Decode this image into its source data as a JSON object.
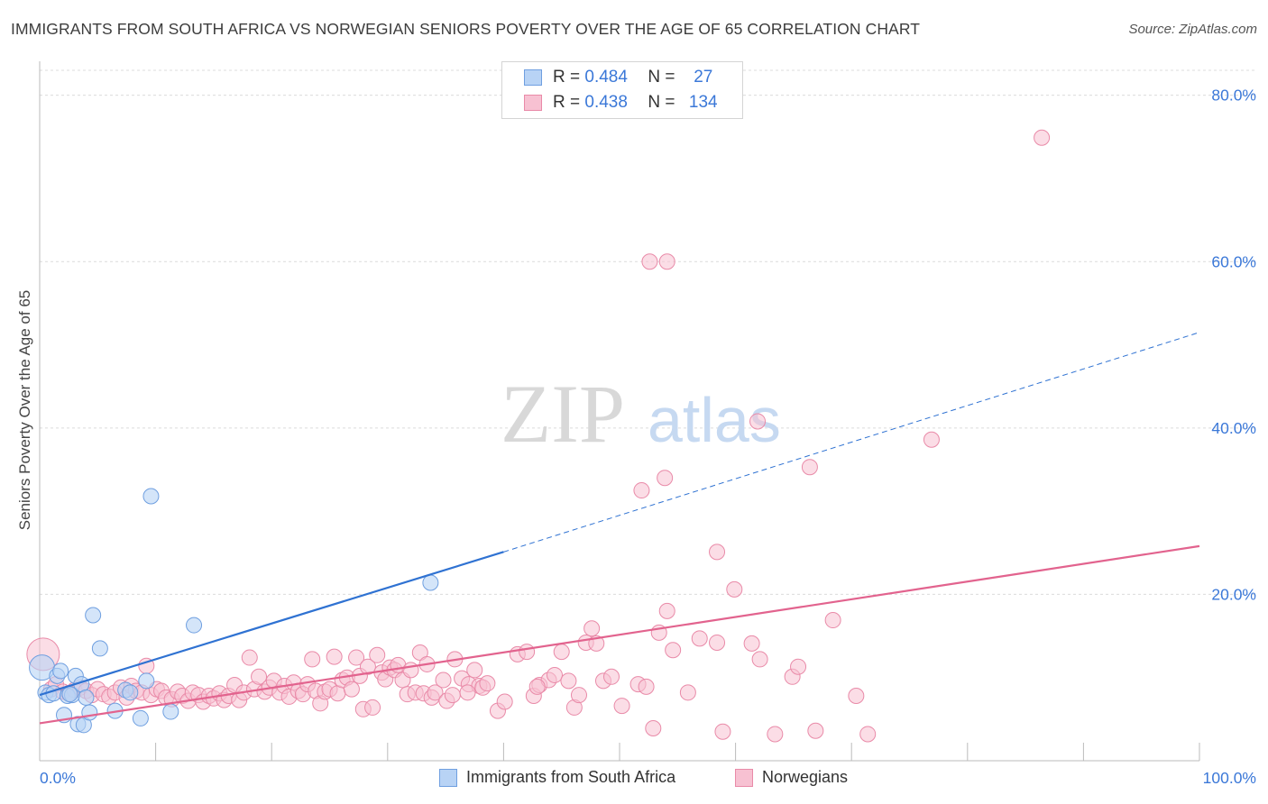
{
  "title": "IMMIGRANTS FROM SOUTH AFRICA VS NORWEGIAN SENIORS POVERTY OVER THE AGE OF 65 CORRELATION CHART",
  "source": "Source: ZipAtlas.com",
  "watermark": {
    "zip": "ZIP",
    "atlas": "atlas"
  },
  "colors": {
    "blue_fill": "#b8d3f5",
    "blue_stroke": "#6f9fe0",
    "blue_line": "#2f72d2",
    "pink_fill": "#f7c1d2",
    "pink_stroke": "#e98aa8",
    "pink_line": "#e2638e",
    "tick_text": "#3b78d8",
    "grid": "#dcdcdc"
  },
  "stats_legend": [
    {
      "r_label": "R =",
      "r_value": "0.484",
      "n_label": "N =",
      "n_value": "27"
    },
    {
      "r_label": "R =",
      "r_value": "0.438",
      "n_label": "N =",
      "n_value": "134"
    }
  ],
  "chart_data": {
    "type": "scatter",
    "title": "IMMIGRANTS FROM SOUTH AFRICA VS NORWEGIAN SENIORS POVERTY OVER THE AGE OF 65 CORRELATION CHART",
    "xlabel": "",
    "ylabel": "Seniors Poverty Over the Age of 65",
    "xlim": [
      0,
      100
    ],
    "ylim": [
      0,
      83
    ],
    "x_tick_labels": [
      "0.0%",
      "100.0%"
    ],
    "y_ticks": [
      20,
      40,
      60,
      80
    ],
    "y_tick_labels": [
      "20.0%",
      "40.0%",
      "60.0%",
      "80.0%"
    ],
    "grid": true,
    "legend_position": "bottom",
    "series": [
      {
        "name": "Immigrants from South Africa",
        "r": 0.484,
        "n": 27,
        "trend": {
          "x0": 0,
          "y0": 7.9,
          "x1": 40,
          "y1": 25.1,
          "dashed_to_x": 100,
          "dashed_to_y": 51.5
        },
        "points": [
          [
            0.2,
            11.2
          ],
          [
            0.5,
            8.2
          ],
          [
            0.8,
            7.9
          ],
          [
            1.2,
            8.1
          ],
          [
            1.5,
            10.2
          ],
          [
            1.8,
            10.8
          ],
          [
            2.1,
            5.5
          ],
          [
            2.4,
            7.8
          ],
          [
            2.8,
            7.9
          ],
          [
            3.1,
            10.2
          ],
          [
            3.3,
            4.4
          ],
          [
            3.6,
            9.2
          ],
          [
            3.8,
            4.3
          ],
          [
            4.0,
            7.6
          ],
          [
            4.3,
            5.8
          ],
          [
            4.6,
            17.5
          ],
          [
            5.2,
            13.5
          ],
          [
            6.5,
            6.0
          ],
          [
            7.4,
            8.5
          ],
          [
            7.8,
            8.2
          ],
          [
            8.7,
            5.1
          ],
          [
            9.2,
            9.6
          ],
          [
            9.6,
            31.8
          ],
          [
            11.3,
            5.9
          ],
          [
            13.3,
            16.3
          ],
          [
            33.7,
            21.4
          ],
          [
            2.6,
            8.0
          ]
        ]
      },
      {
        "name": "Norwegians",
        "r": 0.438,
        "n": 134,
        "trend": {
          "x0": 0,
          "y0": 4.5,
          "x1": 100,
          "y1": 25.8
        },
        "points": [
          [
            0.3,
            12.8
          ],
          [
            1.0,
            8.6
          ],
          [
            1.4,
            9.2
          ],
          [
            2.0,
            8.3
          ],
          [
            2.5,
            8.1
          ],
          [
            3.0,
            8.5
          ],
          [
            3.5,
            8.8
          ],
          [
            4.0,
            8.4
          ],
          [
            4.5,
            7.9
          ],
          [
            5.0,
            8.6
          ],
          [
            5.5,
            8.0
          ],
          [
            6.0,
            7.7
          ],
          [
            6.5,
            8.2
          ],
          [
            7.0,
            8.8
          ],
          [
            7.5,
            7.6
          ],
          [
            7.9,
            9.0
          ],
          [
            8.3,
            8.4
          ],
          [
            8.8,
            8.2
          ],
          [
            9.2,
            11.4
          ],
          [
            9.6,
            7.9
          ],
          [
            10.1,
            8.6
          ],
          [
            10.5,
            8.4
          ],
          [
            10.9,
            7.6
          ],
          [
            11.4,
            7.4
          ],
          [
            11.9,
            8.3
          ],
          [
            12.3,
            7.8
          ],
          [
            12.8,
            7.2
          ],
          [
            13.2,
            8.2
          ],
          [
            13.7,
            7.9
          ],
          [
            14.1,
            7.1
          ],
          [
            14.6,
            7.8
          ],
          [
            15.0,
            7.5
          ],
          [
            15.5,
            8.1
          ],
          [
            15.9,
            7.3
          ],
          [
            16.3,
            7.8
          ],
          [
            16.8,
            9.1
          ],
          [
            17.2,
            7.3
          ],
          [
            17.6,
            8.2
          ],
          [
            18.1,
            12.4
          ],
          [
            18.5,
            8.6
          ],
          [
            18.9,
            10.1
          ],
          [
            19.4,
            8.3
          ],
          [
            19.8,
            8.8
          ],
          [
            20.2,
            9.6
          ],
          [
            20.7,
            8.2
          ],
          [
            21.1,
            9.0
          ],
          [
            21.5,
            7.7
          ],
          [
            21.9,
            9.4
          ],
          [
            22.3,
            8.4
          ],
          [
            22.7,
            8.0
          ],
          [
            23.1,
            9.2
          ],
          [
            23.5,
            12.2
          ],
          [
            23.8,
            8.4
          ],
          [
            24.2,
            6.9
          ],
          [
            24.6,
            8.3
          ],
          [
            25.0,
            8.6
          ],
          [
            25.4,
            12.5
          ],
          [
            25.7,
            8.1
          ],
          [
            26.1,
            9.7
          ],
          [
            26.5,
            10.0
          ],
          [
            26.9,
            8.6
          ],
          [
            27.3,
            12.4
          ],
          [
            27.6,
            10.2
          ],
          [
            27.9,
            6.2
          ],
          [
            28.3,
            11.3
          ],
          [
            28.7,
            6.4
          ],
          [
            29.1,
            12.7
          ],
          [
            29.5,
            10.6
          ],
          [
            29.8,
            9.8
          ],
          [
            30.2,
            11.2
          ],
          [
            30.6,
            10.9
          ],
          [
            30.9,
            11.5
          ],
          [
            31.3,
            9.7
          ],
          [
            31.7,
            8.0
          ],
          [
            32.0,
            10.9
          ],
          [
            32.4,
            8.2
          ],
          [
            32.8,
            13.0
          ],
          [
            33.1,
            8.1
          ],
          [
            33.4,
            11.6
          ],
          [
            33.8,
            7.6
          ],
          [
            34.1,
            8.2
          ],
          [
            34.8,
            9.7
          ],
          [
            35.1,
            7.2
          ],
          [
            35.8,
            12.2
          ],
          [
            36.4,
            9.9
          ],
          [
            37.0,
            9.2
          ],
          [
            37.5,
            10.9
          ],
          [
            37.9,
            9.0
          ],
          [
            38.2,
            8.8
          ],
          [
            38.6,
            9.3
          ],
          [
            39.5,
            6.0
          ],
          [
            40.1,
            7.1
          ],
          [
            41.2,
            12.8
          ],
          [
            42.0,
            13.1
          ],
          [
            42.6,
            7.8
          ],
          [
            43.1,
            9.1
          ],
          [
            43.9,
            9.7
          ],
          [
            44.4,
            10.3
          ],
          [
            45.0,
            13.1
          ],
          [
            45.6,
            9.6
          ],
          [
            46.1,
            6.4
          ],
          [
            46.5,
            7.9
          ],
          [
            47.1,
            14.2
          ],
          [
            47.6,
            15.9
          ],
          [
            48.0,
            14.1
          ],
          [
            48.6,
            9.6
          ],
          [
            49.3,
            10.1
          ],
          [
            50.2,
            6.6
          ],
          [
            51.6,
            9.2
          ],
          [
            52.3,
            8.9
          ],
          [
            52.9,
            3.9
          ],
          [
            53.4,
            15.4
          ],
          [
            54.1,
            18.0
          ],
          [
            54.6,
            13.3
          ],
          [
            55.9,
            8.2
          ],
          [
            56.9,
            14.7
          ],
          [
            58.4,
            25.1
          ],
          [
            59.9,
            20.6
          ],
          [
            61.4,
            14.1
          ],
          [
            62.1,
            12.2
          ],
          [
            64.9,
            10.1
          ],
          [
            65.4,
            11.3
          ],
          [
            68.4,
            16.9
          ],
          [
            70.4,
            7.8
          ],
          [
            71.4,
            3.2
          ],
          [
            76.9,
            38.6
          ],
          [
            86.4,
            74.9
          ],
          [
            52.6,
            60.0
          ],
          [
            54.1,
            60.0
          ],
          [
            61.9,
            40.8
          ],
          [
            66.4,
            35.3
          ],
          [
            58.9,
            3.5
          ],
          [
            58.4,
            14.2
          ],
          [
            63.4,
            3.2
          ],
          [
            66.9,
            3.6
          ],
          [
            42.9,
            8.9
          ],
          [
            35.6,
            7.9
          ],
          [
            36.9,
            8.2
          ],
          [
            51.9,
            32.5
          ],
          [
            53.9,
            34.0
          ]
        ]
      }
    ]
  },
  "legend": [
    {
      "label": "Immigrants from South Africa"
    },
    {
      "label": "Norwegians"
    }
  ]
}
